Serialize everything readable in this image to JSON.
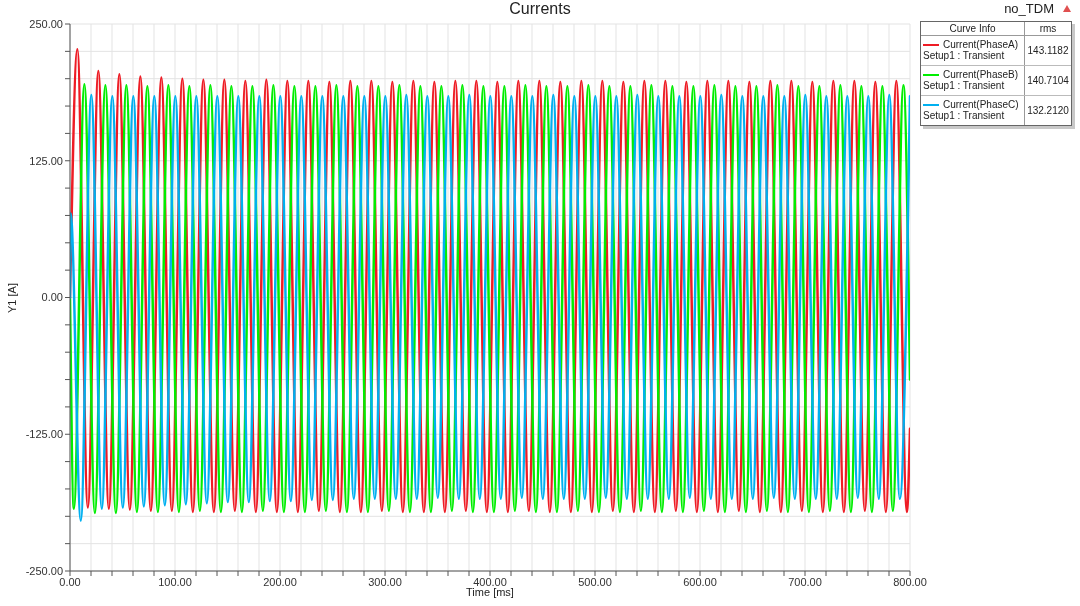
{
  "chart_data": {
    "type": "line",
    "title": "Currents",
    "xlabel": "Time [ms]",
    "ylabel": "Y1 [A]",
    "legend_title": "Curve Info",
    "annotations": [
      "no_TDM",
      "rms",
      "143.1182",
      "140.7104",
      "132.2120"
    ],
    "xlim": [
      0,
      800
    ],
    "ylim": [
      -250,
      250
    ],
    "xticks": [
      {
        "value": 0,
        "label": "0.00"
      },
      {
        "value": 20,
        "label": null
      },
      {
        "value": 40,
        "label": null
      },
      {
        "value": 60,
        "label": null
      },
      {
        "value": 80,
        "label": null
      },
      {
        "value": 100,
        "label": "100.00"
      },
      {
        "value": 120,
        "label": null
      },
      {
        "value": 140,
        "label": null
      },
      {
        "value": 160,
        "label": null
      },
      {
        "value": 180,
        "label": null
      },
      {
        "value": 200,
        "label": "200.00"
      },
      {
        "value": 220,
        "label": null
      },
      {
        "value": 240,
        "label": null
      },
      {
        "value": 260,
        "label": null
      },
      {
        "value": 280,
        "label": null
      },
      {
        "value": 300,
        "label": "300.00"
      },
      {
        "value": 320,
        "label": null
      },
      {
        "value": 340,
        "label": null
      },
      {
        "value": 360,
        "label": null
      },
      {
        "value": 380,
        "label": null
      },
      {
        "value": 400,
        "label": "400.00"
      },
      {
        "value": 420,
        "label": null
      },
      {
        "value": 440,
        "label": null
      },
      {
        "value": 460,
        "label": null
      },
      {
        "value": 480,
        "label": null
      },
      {
        "value": 500,
        "label": "500.00"
      },
      {
        "value": 520,
        "label": null
      },
      {
        "value": 540,
        "label": null
      },
      {
        "value": 560,
        "label": null
      },
      {
        "value": 580,
        "label": null
      },
      {
        "value": 600,
        "label": "600.00"
      },
      {
        "value": 620,
        "label": null
      },
      {
        "value": 640,
        "label": null
      },
      {
        "value": 660,
        "label": null
      },
      {
        "value": 680,
        "label": null
      },
      {
        "value": 700,
        "label": "700.00"
      },
      {
        "value": 720,
        "label": null
      },
      {
        "value": 740,
        "label": null
      },
      {
        "value": 760,
        "label": null
      },
      {
        "value": 780,
        "label": null
      },
      {
        "value": 800,
        "label": "800.00"
      }
    ],
    "yticks": [
      {
        "value": -250,
        "label": "-250.00"
      },
      {
        "value": -225,
        "label": null
      },
      {
        "value": -200,
        "label": null
      },
      {
        "value": -175,
        "label": null
      },
      {
        "value": -150,
        "label": null
      },
      {
        "value": -125,
        "label": "-125.00"
      },
      {
        "value": -100,
        "label": null
      },
      {
        "value": -75,
        "label": null
      },
      {
        "value": -50,
        "label": null
      },
      {
        "value": -25,
        "label": null
      },
      {
        "value": 0,
        "label": "0.00"
      },
      {
        "value": 25,
        "label": null
      },
      {
        "value": 50,
        "label": null
      },
      {
        "value": 75,
        "label": null
      },
      {
        "value": 100,
        "label": null
      },
      {
        "value": 125,
        "label": "125.00"
      },
      {
        "value": 150,
        "label": null
      },
      {
        "value": 175,
        "label": null
      },
      {
        "value": 200,
        "label": null
      },
      {
        "value": 225,
        "label": null
      },
      {
        "value": 250,
        "label": "250.00"
      }
    ],
    "grid": true,
    "legend": "top right",
    "marker": "none",
    "line_style": "solid",
    "series": [
      {
        "name": "Current(PhaseA) Setup1 : Transient",
        "color": "#ee1c25",
        "x": [
          0,
          7,
          17,
          27,
          37,
          47,
          57,
          67,
          77,
          87,
          97,
          107,
          117,
          127,
          137,
          147,
          157,
          167,
          177,
          187,
          197,
          207,
          217,
          227,
          237,
          247,
          257,
          267,
          277,
          287,
          297,
          307,
          317,
          327,
          337,
          347,
          357,
          367,
          377,
          387,
          397,
          407,
          417,
          427,
          437,
          447,
          457,
          467,
          477,
          487,
          497,
          507,
          517,
          527,
          537,
          547,
          557,
          567,
          577,
          587,
          597,
          607,
          617,
          627,
          637,
          647,
          657,
          667,
          677,
          687,
          697,
          707,
          717,
          727,
          737,
          747,
          757,
          767,
          777,
          787,
          797,
          800
        ],
        "values": [
          0,
          227,
          -192,
          207,
          -193,
          204,
          -194,
          202,
          -195,
          201,
          -195,
          200,
          -196,
          199,
          -196,
          199,
          -195,
          198,
          -196,
          199,
          -196,
          198,
          -196,
          198,
          -195,
          197,
          -196,
          198,
          -196,
          198,
          -195,
          197,
          -196,
          198,
          -196,
          197,
          -196,
          198,
          -195,
          198,
          -196,
          197,
          -196,
          198,
          -195,
          198,
          -196,
          197,
          -196,
          198,
          -196,
          198,
          -195,
          197,
          -196,
          198,
          -196,
          198,
          -195,
          197,
          -196,
          198,
          -196,
          198,
          -195,
          197,
          -196,
          198,
          -196,
          198,
          -195,
          197,
          -196,
          198,
          -196,
          198,
          -195,
          197,
          -196,
          198,
          -196,
          -120
        ]
      },
      {
        "name": "Current(PhaseB) Setup1 : Transient",
        "color": "#00ee00",
        "x": [
          0,
          3.7,
          13.7,
          23.7,
          33.7,
          43.7,
          53.7,
          63.7,
          73.7,
          83.7,
          93.7,
          103.7,
          113.7,
          123.7,
          133.7,
          143.7,
          153.7,
          163.7,
          173.7,
          183.7,
          193.7,
          203.7,
          213.7,
          223.7,
          233.7,
          243.7,
          253.7,
          263.7,
          273.7,
          283.7,
          293.7,
          303.7,
          313.7,
          323.7,
          333.7,
          343.7,
          353.7,
          363.7,
          373.7,
          383.7,
          393.7,
          403.7,
          413.7,
          423.7,
          433.7,
          443.7,
          453.7,
          463.7,
          473.7,
          483.7,
          493.7,
          503.7,
          513.7,
          523.7,
          533.7,
          543.7,
          553.7,
          563.7,
          573.7,
          583.7,
          593.7,
          603.7,
          613.7,
          623.7,
          633.7,
          643.7,
          653.7,
          663.7,
          673.7,
          683.7,
          693.7,
          703.7,
          713.7,
          723.7,
          733.7,
          743.7,
          753.7,
          763.7,
          773.7,
          783.7,
          793.7,
          800
        ],
        "values": [
          0,
          -193,
          195,
          -197,
          194,
          -197,
          194,
          -196,
          193,
          -196,
          194,
          -196,
          193,
          -195,
          194,
          -196,
          193,
          -196,
          193,
          -195,
          194,
          -196,
          193,
          -196,
          193,
          -195,
          194,
          -196,
          193,
          -196,
          193,
          -195,
          194,
          -196,
          193,
          -196,
          193,
          -195,
          194,
          -196,
          193,
          -196,
          193,
          -195,
          194,
          -196,
          193,
          -196,
          193,
          -195,
          194,
          -196,
          193,
          -196,
          193,
          -195,
          194,
          -196,
          193,
          -196,
          193,
          -195,
          194,
          -196,
          193,
          -196,
          193,
          -195,
          194,
          -196,
          193,
          -196,
          193,
          -195,
          194,
          -196,
          193,
          -196,
          193,
          -195,
          194,
          -75
        ]
      },
      {
        "name": "Current(PhaseC) Setup1 : Transient",
        "color": "#00b0f0",
        "x": [
          0,
          0.6,
          10.3,
          20.3,
          30.3,
          40.3,
          50.3,
          60.3,
          70.3,
          80.3,
          90.3,
          100.3,
          110.3,
          120.3,
          130.3,
          140.3,
          150.3,
          160.3,
          170.3,
          180.3,
          190.3,
          200.3,
          210.3,
          220.3,
          230.3,
          240.3,
          250.3,
          260.3,
          270.3,
          280.3,
          290.3,
          300.3,
          310.3,
          320.3,
          330.3,
          340.3,
          350.3,
          360.3,
          370.3,
          380.3,
          390.3,
          400.3,
          410.3,
          420.3,
          430.3,
          440.3,
          450.3,
          460.3,
          470.3,
          480.3,
          490.3,
          500.3,
          510.3,
          520.3,
          530.3,
          540.3,
          550.3,
          560.3,
          570.3,
          580.3,
          590.3,
          600.3,
          610.3,
          620.3,
          630.3,
          640.3,
          650.3,
          660.3,
          670.3,
          680.3,
          690.3,
          700.3,
          710.3,
          720.3,
          730.3,
          740.3,
          750.3,
          760.3,
          770.3,
          780.3,
          790.3,
          800
        ],
        "values": [
          0,
          77,
          -204,
          185,
          -193,
          184,
          -192,
          184,
          -191,
          184,
          -190,
          184,
          -189,
          184,
          -188,
          184,
          -187,
          184,
          -187,
          184,
          -186,
          184,
          -186,
          184,
          -185,
          184,
          -185,
          184,
          -184,
          184,
          -184,
          184,
          -184,
          185,
          -184,
          184,
          -183,
          184,
          -184,
          185,
          -184,
          184,
          -184,
          184,
          -183,
          184,
          -184,
          185,
          -184,
          184,
          -184,
          184,
          -183,
          184,
          -184,
          185,
          -184,
          184,
          -184,
          184,
          -183,
          184,
          -184,
          185,
          -184,
          184,
          -184,
          184,
          -183,
          184,
          -184,
          185,
          -184,
          184,
          -184,
          184,
          -183,
          184,
          -184,
          185,
          -184,
          184
        ]
      }
    ]
  }
}
